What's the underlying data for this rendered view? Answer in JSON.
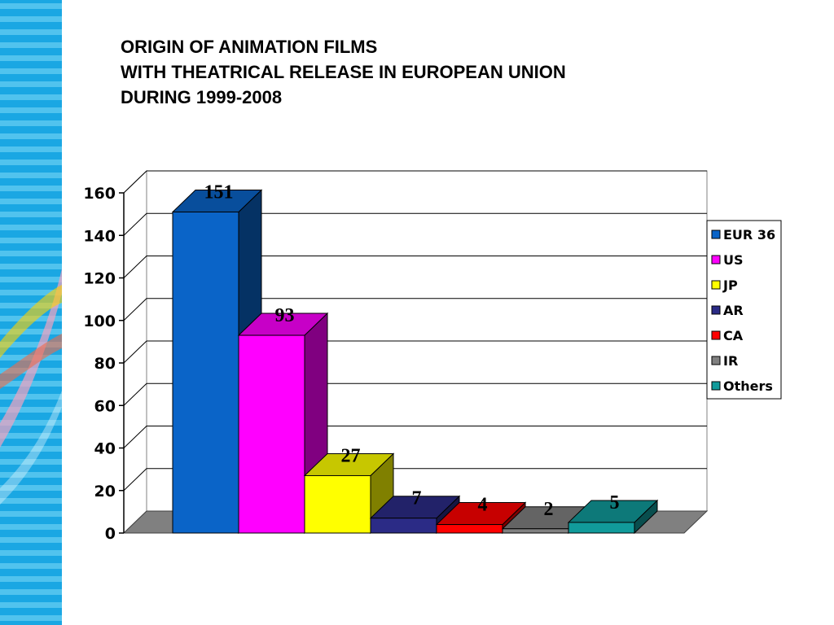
{
  "sidebar": {
    "stripe_color_light": "#5cc8f0",
    "stripe_color_dark": "#1aa7e3"
  },
  "chart_data": {
    "type": "bar",
    "title_lines": [
      "ORIGIN OF ANIMATION FILMS",
      "WITH THEATRICAL RELEASE IN EUROPEAN UNION",
      "DURING 1999-2008"
    ],
    "categories": [
      "EUR 36",
      "US",
      "JP",
      "AR",
      "CA",
      "IR",
      "Others"
    ],
    "values": [
      151,
      93,
      27,
      7,
      4,
      2,
      5
    ],
    "colors": [
      "#0a64c8",
      "#ff00ff",
      "#ffff00",
      "#2b2b86",
      "#ff0000",
      "#808080",
      "#119b9b"
    ],
    "yticks": [
      0,
      20,
      40,
      60,
      80,
      100,
      120,
      140,
      160
    ],
    "ylim": [
      0,
      160
    ],
    "legend_position": "right",
    "grid": true,
    "xlabel": "",
    "ylabel": ""
  }
}
